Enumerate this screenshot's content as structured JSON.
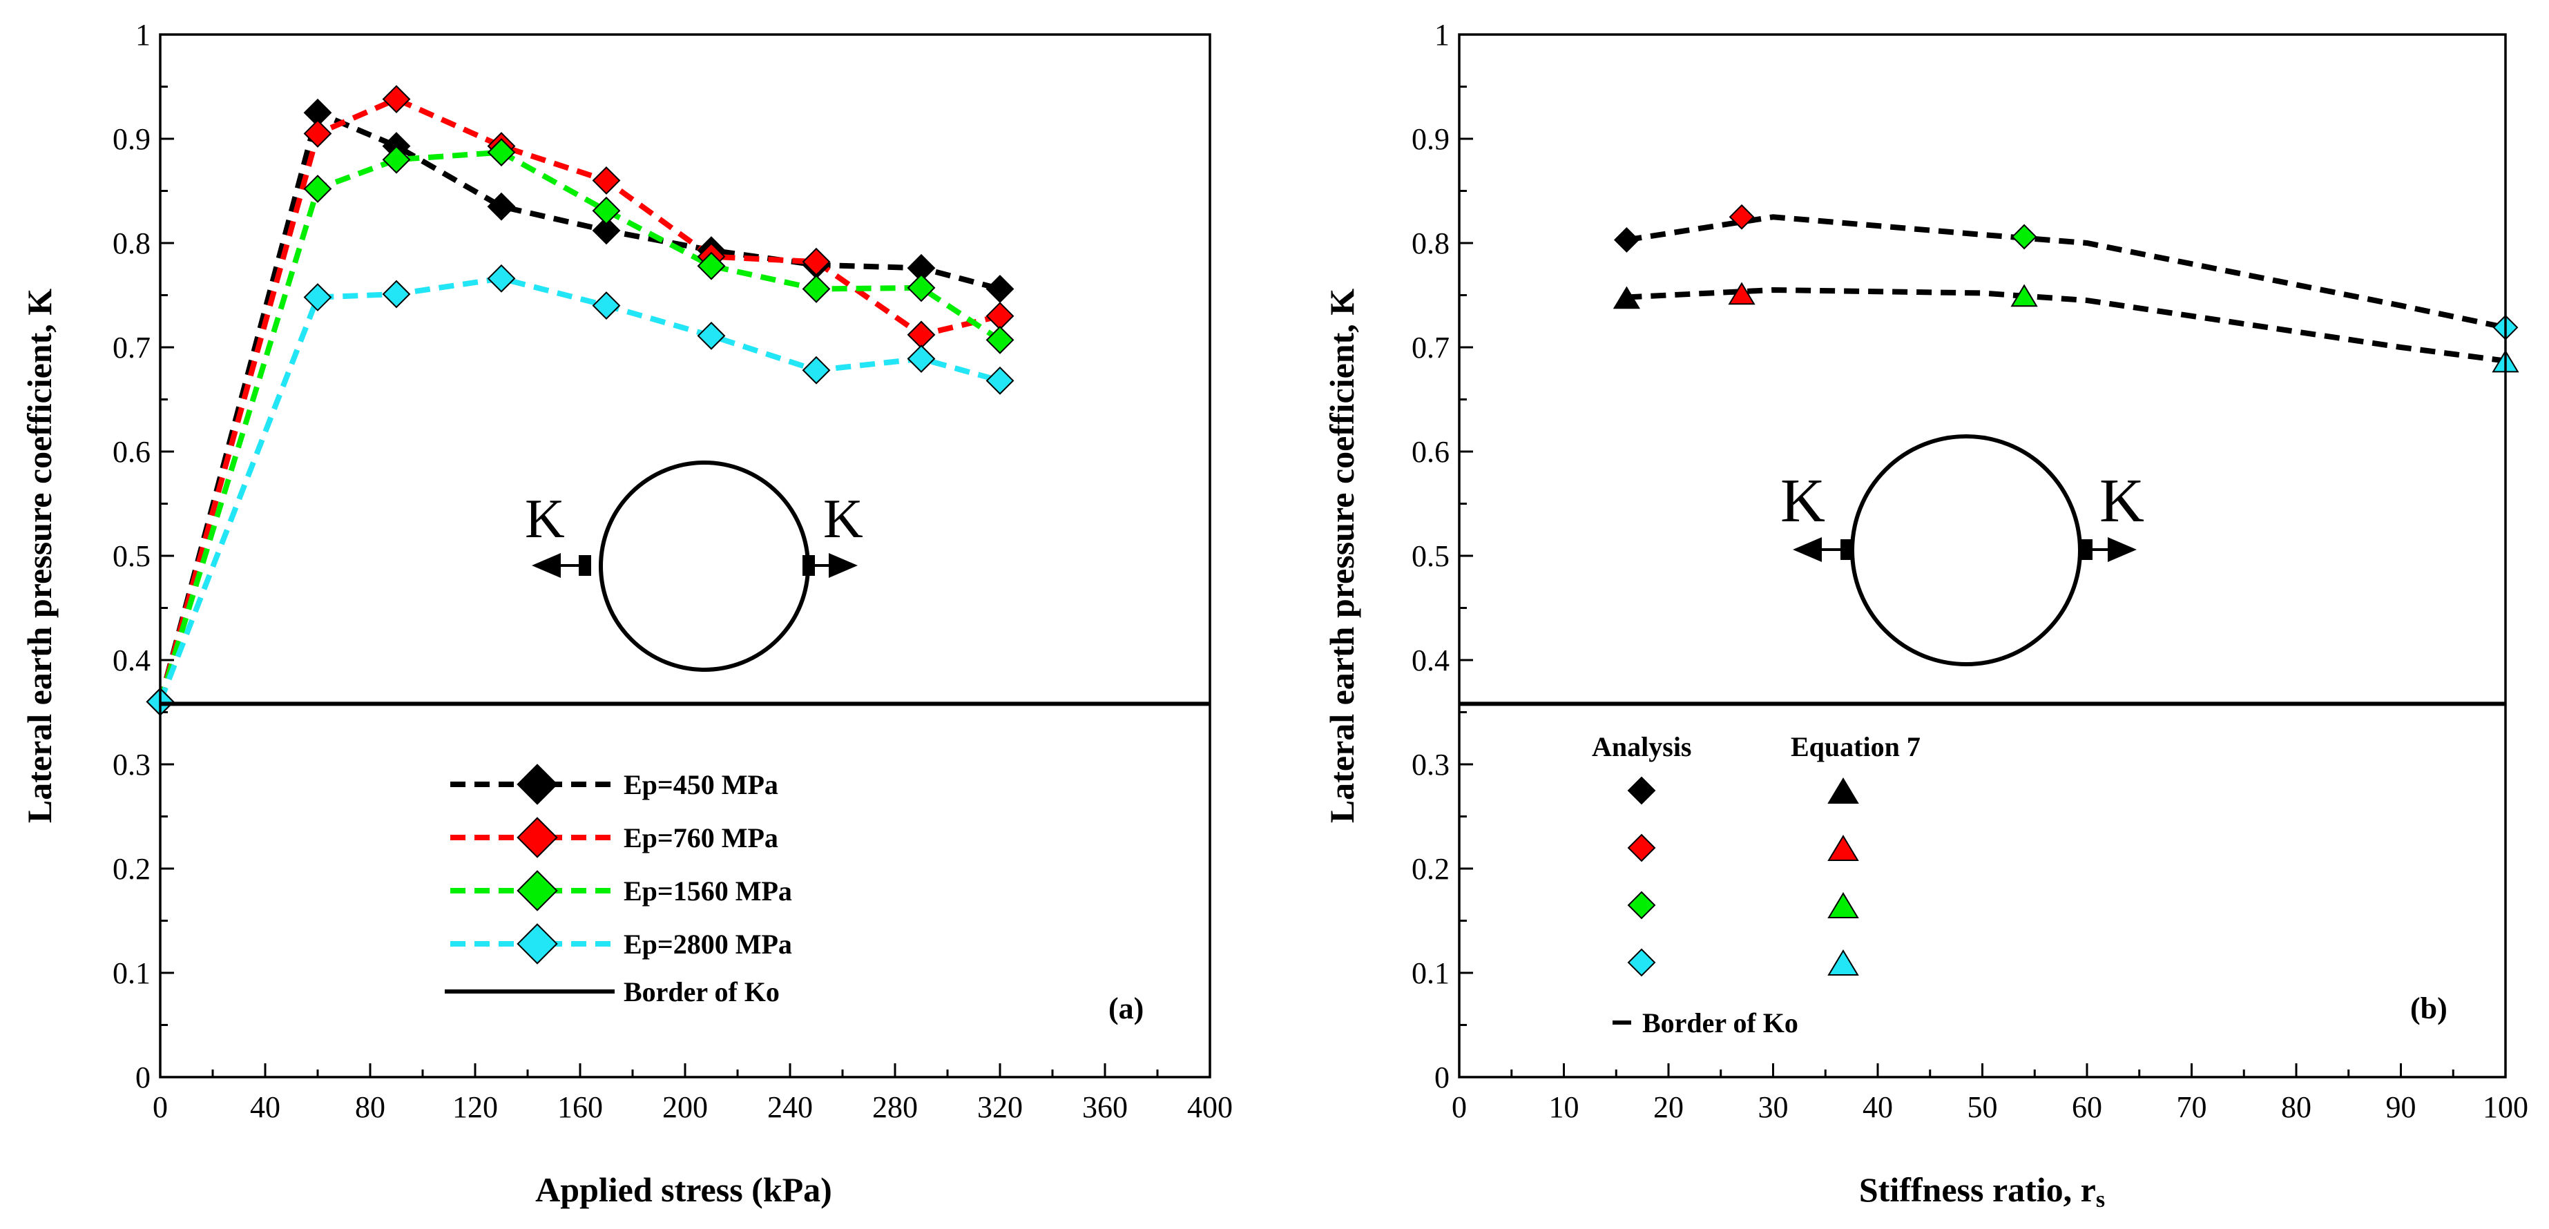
{
  "chart_data": [
    {
      "type": "line",
      "panel_label": "(a)",
      "xlabel": "Applied stress (kPa)",
      "ylabel": "Lateral earth pressure coefficient, K",
      "xlim": [
        0,
        400
      ],
      "ylim": [
        0,
        1
      ],
      "xticks": [
        "0",
        "40",
        "80",
        "120",
        "160",
        "200",
        "240",
        "280",
        "320",
        "360",
        "400"
      ],
      "yticks": [
        "0",
        "0.1",
        "0.2",
        "0.3",
        "0.4",
        "0.5",
        "0.6",
        "0.7",
        "0.8",
        "0.9",
        "1"
      ],
      "x": [
        0,
        60,
        90,
        130,
        170,
        210,
        250,
        290,
        320
      ],
      "series": [
        {
          "name": "Ep=450 MPa",
          "color": "#000000",
          "values": [
            0.36,
            0.925,
            0.893,
            0.835,
            0.812,
            0.793,
            0.779,
            0.776,
            0.756
          ]
        },
        {
          "name": "Ep=760 MPa",
          "color": "#ff0000",
          "values": [
            0.36,
            0.905,
            0.938,
            0.893,
            0.86,
            0.787,
            0.782,
            0.712,
            0.73
          ]
        },
        {
          "name": "Ep=1560 MPa",
          "color": "#00ee00",
          "values": [
            0.36,
            0.852,
            0.88,
            0.887,
            0.831,
            0.778,
            0.756,
            0.757,
            0.707
          ]
        },
        {
          "name": "Ep=2800 MPa",
          "color": "#22e5f5",
          "values": [
            0.36,
            0.748,
            0.751,
            0.766,
            0.74,
            0.711,
            0.678,
            0.689,
            0.668
          ]
        }
      ],
      "border_ko": {
        "name": "Border of Ko",
        "value": 0.358
      },
      "inset_labels": [
        "K",
        "K"
      ]
    },
    {
      "type": "line",
      "panel_label": "(b)",
      "xlabel": "Stiffness ratio, r",
      "xlabel_subscript": "s",
      "ylabel": "Lateral earth pressure coefficient, K",
      "xlim": [
        0,
        100
      ],
      "ylim": [
        0,
        1
      ],
      "xticks": [
        "0",
        "10",
        "20",
        "30",
        "40",
        "50",
        "60",
        "70",
        "80",
        "90",
        "100"
      ],
      "yticks": [
        "0",
        "0.1",
        "0.2",
        "0.3",
        "0.4",
        "0.5",
        "0.6",
        "0.7",
        "0.8",
        "0.9",
        "1"
      ],
      "legend_headers": [
        "Analysis",
        "Equation 7"
      ],
      "analysis_points": [
        {
          "x": 16,
          "y": 0.803,
          "color": "#000000"
        },
        {
          "x": 27,
          "y": 0.825,
          "color": "#ff0000"
        },
        {
          "x": 54,
          "y": 0.806,
          "color": "#00ee00"
        },
        {
          "x": 100,
          "y": 0.719,
          "color": "#22e5f5"
        }
      ],
      "analysis_curve": {
        "x": [
          16,
          30,
          50,
          60,
          70,
          80,
          90,
          100
        ],
        "y": [
          0.803,
          0.825,
          0.808,
          0.8,
          0.78,
          0.76,
          0.74,
          0.719
        ]
      },
      "equation_points": [
        {
          "x": 16,
          "y": 0.748,
          "color": "#000000"
        },
        {
          "x": 27,
          "y": 0.752,
          "color": "#ff0000"
        },
        {
          "x": 54,
          "y": 0.75,
          "color": "#00ee00"
        },
        {
          "x": 100,
          "y": 0.687,
          "color": "#22e5f5"
        }
      ],
      "equation_curve": {
        "x": [
          16,
          30,
          50,
          60,
          70,
          80,
          90,
          100
        ],
        "y": [
          0.748,
          0.755,
          0.752,
          0.745,
          0.73,
          0.715,
          0.7,
          0.687
        ]
      },
      "legend_colors": [
        "#000000",
        "#ff0000",
        "#00ee00",
        "#22e5f5"
      ],
      "border_ko": {
        "name": "Border of Ko",
        "value": 0.358
      },
      "inset_labels": [
        "K",
        "K"
      ]
    }
  ]
}
